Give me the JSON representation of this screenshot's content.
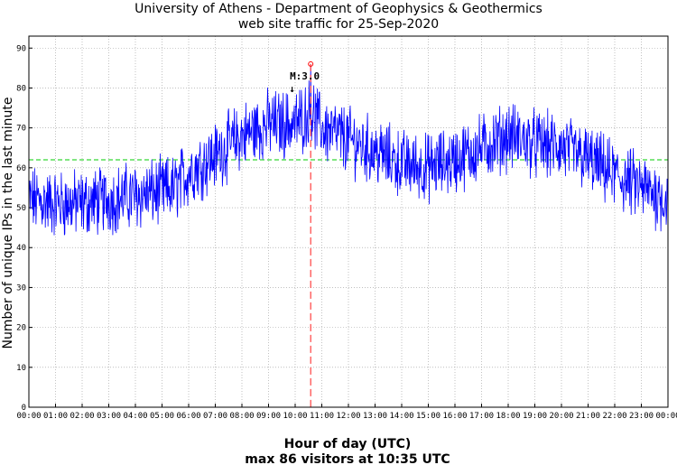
{
  "chart_data": {
    "type": "line",
    "title": "University of Athens - Department of Geophysics & Geothermics",
    "subtitle": "web site traffic for 25-Sep-2020",
    "xlabel": "Hour of day (UTC)",
    "ylabel": "Number of unique IPs in the last minute",
    "footer": "max 86 visitors at 10:35 UTC",
    "x_ticks": [
      "00:00",
      "01:00",
      "02:00",
      "03:00",
      "04:00",
      "05:00",
      "06:00",
      "07:00",
      "08:00",
      "09:00",
      "10:00",
      "11:00",
      "12:00",
      "13:00",
      "14:00",
      "15:00",
      "16:00",
      "17:00",
      "18:00",
      "19:00",
      "20:00",
      "21:00",
      "22:00",
      "23:00",
      "00:00"
    ],
    "y_ticks": [
      "0",
      "10",
      "20",
      "30",
      "40",
      "50",
      "60",
      "70",
      "80",
      "90"
    ],
    "ylim": [
      0,
      93
    ],
    "xlim_hours": [
      0,
      24
    ],
    "grid": true,
    "mean_level": 62,
    "max_value": 86,
    "max_time_hours": 10.583,
    "marker_label": "M:3.0",
    "line_color": "#0000ff",
    "mean_color": "#00cc00",
    "max_color": "#ff4040",
    "series": [
      {
        "trend_hours": [
          0,
          1,
          2,
          3,
          4,
          5,
          5.5,
          6,
          7,
          8,
          9,
          10,
          10.6,
          11,
          12,
          13,
          14,
          15,
          16,
          17,
          18,
          19,
          20,
          21,
          22,
          23,
          24
        ],
        "trend_values": [
          52,
          51,
          51,
          52,
          53,
          54,
          55,
          59,
          63,
          68,
          71,
          71,
          74,
          70,
          67,
          64,
          61,
          60,
          62,
          65,
          68,
          66,
          65,
          62,
          58,
          55,
          52
        ]
      }
    ]
  }
}
